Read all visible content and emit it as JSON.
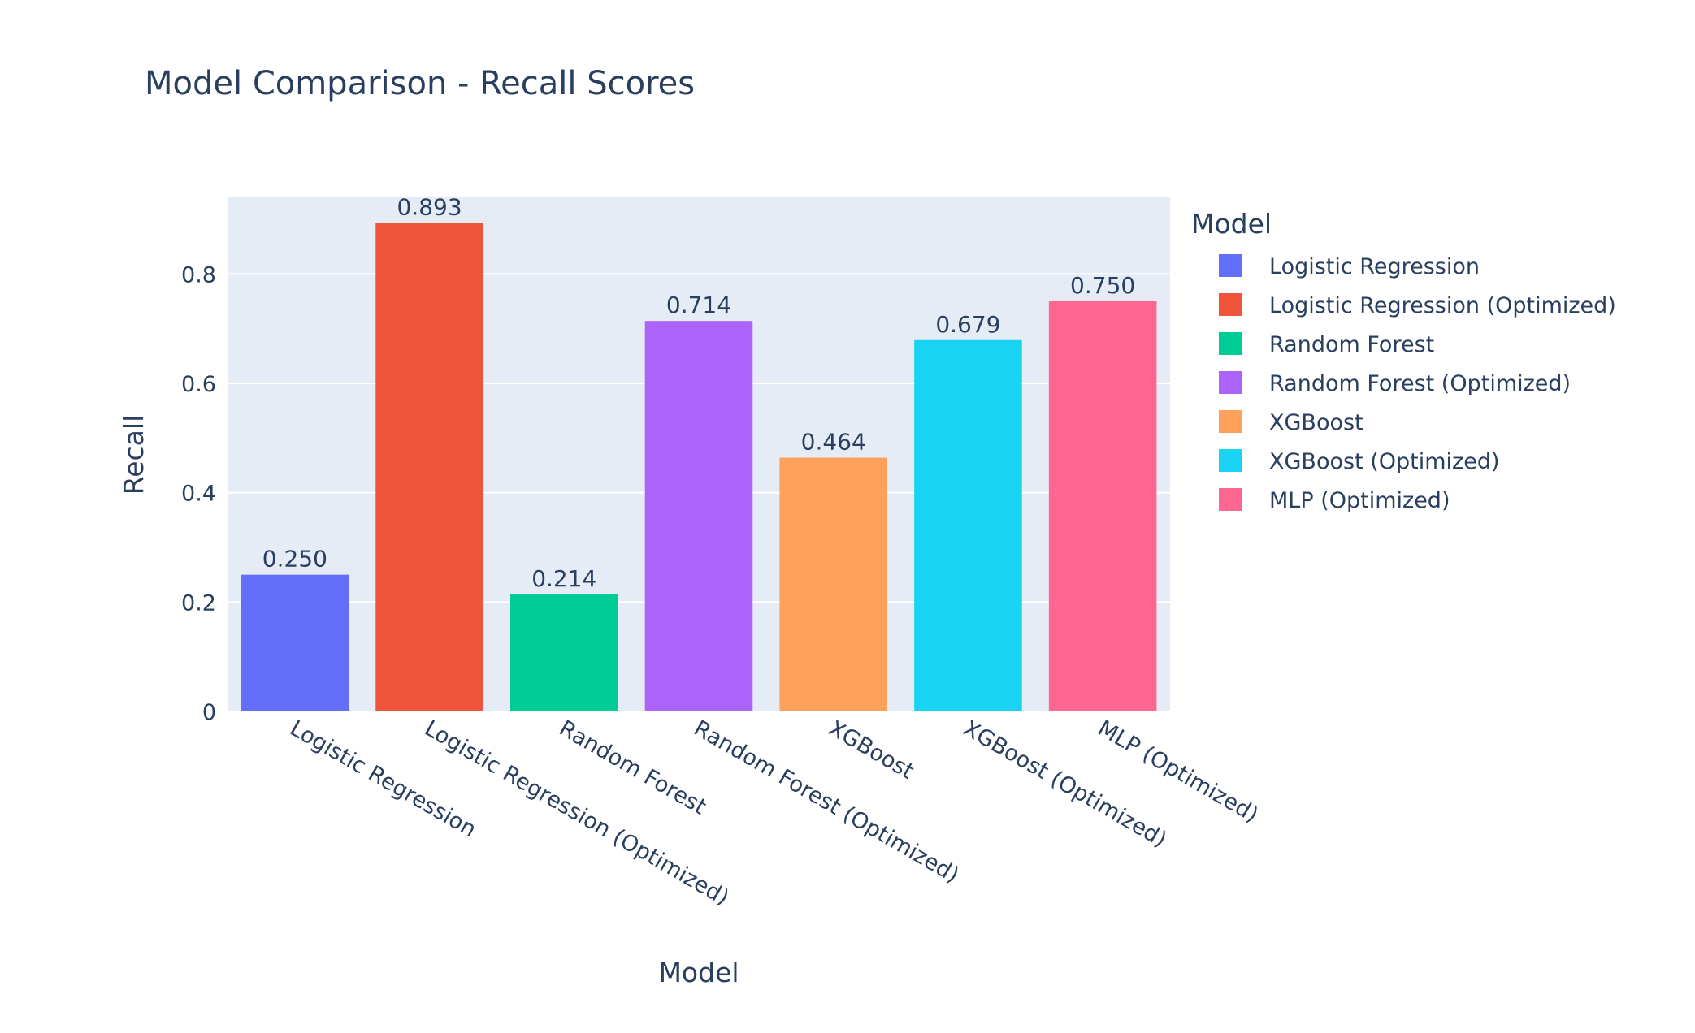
{
  "chart_data": {
    "type": "bar",
    "title": "Model Comparison - Recall Scores",
    "xlabel": "Model",
    "ylabel": "Recall",
    "ylim": [
      0,
      0.94
    ],
    "yticks": [
      0,
      0.2,
      0.4,
      0.6,
      0.8
    ],
    "ytick_labels": [
      "0",
      "0.2",
      "0.4",
      "0.6",
      "0.8"
    ],
    "grid": true,
    "legend_title": "Model",
    "legend_position": "right",
    "categories": [
      "Logistic Regression",
      "Logistic Regression (Optimized)",
      "Random Forest",
      "Random Forest (Optimized)",
      "XGBoost",
      "XGBoost (Optimized)",
      "MLP (Optimized)"
    ],
    "values": [
      0.25,
      0.893,
      0.214,
      0.714,
      0.464,
      0.679,
      0.75
    ],
    "value_labels": [
      "0.250",
      "0.893",
      "0.214",
      "0.714",
      "0.464",
      "0.679",
      "0.750"
    ],
    "colors": [
      "#636efa",
      "#ef553b",
      "#00cc96",
      "#ab63fa",
      "#ffa15a",
      "#19d3f3",
      "#ff6692"
    ],
    "plot_bgcolor": "#e5ecf6",
    "gridcolor": "#ffffff",
    "text_color": "#2a3f5f"
  }
}
